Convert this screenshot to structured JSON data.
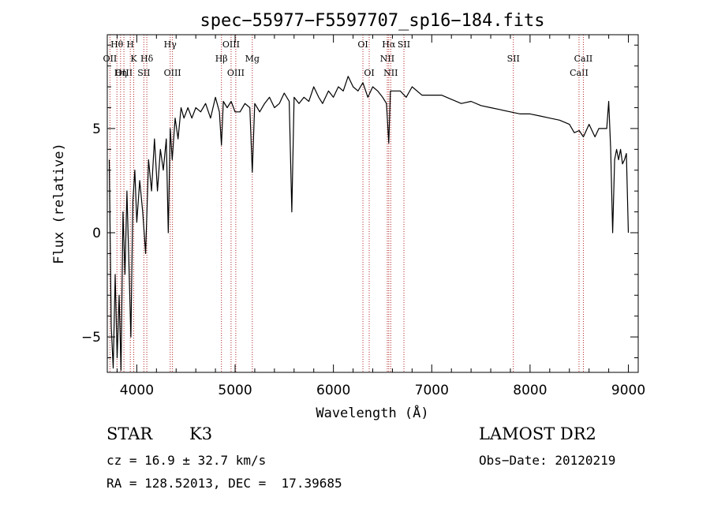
{
  "chart_data": {
    "type": "line",
    "title": "spec−55977−F5597707_sp16−184.fits",
    "xlabel": "Wavelength (Å)",
    "ylabel": "Flux (relative)",
    "xlim": [
      3700,
      9100
    ],
    "ylim": [
      -6.7,
      9.5
    ],
    "x_ticks": [
      4000,
      5000,
      6000,
      7000,
      8000,
      9000
    ],
    "y_ticks": [
      -5,
      0,
      5
    ],
    "y_tick_labels": [
      "−5",
      "0",
      "5"
    ],
    "grid": false,
    "series": [
      {
        "x": [
          3720,
          3740,
          3760,
          3780,
          3800,
          3820,
          3840,
          3860,
          3880,
          3900,
          3920,
          3940,
          3960,
          3980,
          4000,
          4030,
          4060,
          4090,
          4120,
          4150,
          4180,
          4210,
          4240,
          4270,
          4300,
          4320,
          4340,
          4360,
          4390,
          4420,
          4450,
          4480,
          4520,
          4560,
          4600,
          4650,
          4700,
          4750,
          4800,
          4840,
          4861,
          4880,
          4920,
          4960,
          5000,
          5050,
          5100,
          5150,
          5175,
          5200,
          5250,
          5300,
          5350,
          5400,
          5450,
          5500,
          5550,
          5577,
          5600,
          5650,
          5700,
          5750,
          5800,
          5850,
          5890,
          5950,
          6000,
          6050,
          6100,
          6150,
          6200,
          6250,
          6300,
          6350,
          6400,
          6450,
          6500,
          6540,
          6563,
          6580,
          6620,
          6680,
          6740,
          6800,
          6900,
          7000,
          7100,
          7200,
          7300,
          7400,
          7500,
          7600,
          7700,
          7800,
          7900,
          8000,
          8100,
          8200,
          8300,
          8400,
          8450,
          8500,
          8542,
          8600,
          8660,
          8700,
          8750,
          8780,
          8800,
          8820,
          8840,
          8860,
          8880,
          8900,
          8920,
          8940,
          8960,
          8980,
          9000
        ],
        "y": [
          3.5,
          -4.5,
          -6.5,
          -2.0,
          -6.0,
          -3.0,
          -6.6,
          1.0,
          -2.0,
          2.0,
          -1.5,
          -5.0,
          1.5,
          3.0,
          0.5,
          2.5,
          1.0,
          -1.0,
          3.5,
          2.0,
          4.5,
          2.0,
          4.0,
          3.0,
          4.5,
          0.0,
          5.0,
          3.5,
          5.5,
          4.5,
          6.0,
          5.5,
          6.0,
          5.5,
          6.0,
          5.8,
          6.2,
          5.5,
          6.5,
          5.8,
          4.2,
          6.3,
          6.0,
          6.3,
          5.8,
          5.8,
          6.2,
          6.0,
          2.9,
          6.2,
          5.8,
          6.2,
          6.5,
          6.0,
          6.2,
          6.7,
          6.3,
          1.0,
          6.5,
          6.2,
          6.5,
          6.3,
          7.0,
          6.5,
          6.2,
          6.8,
          6.5,
          7.0,
          6.8,
          7.5,
          7.0,
          6.8,
          7.2,
          6.5,
          7.0,
          6.8,
          6.5,
          6.2,
          4.3,
          6.8,
          6.8,
          6.8,
          6.5,
          7.0,
          6.6,
          6.6,
          6.6,
          6.4,
          6.2,
          6.3,
          6.1,
          6.0,
          5.9,
          5.8,
          5.7,
          5.7,
          5.6,
          5.5,
          5.4,
          5.2,
          4.8,
          4.9,
          4.6,
          5.2,
          4.6,
          5.0,
          5.0,
          5.0,
          6.3,
          4.0,
          0.0,
          3.5,
          4.0,
          3.5,
          4.0,
          3.3,
          3.5,
          3.8,
          0.0
        ]
      }
    ],
    "spectral_lines": [
      {
        "label": "OII",
        "x": 3727,
        "row": 2
      },
      {
        "label": "Hθ",
        "x": 3798,
        "row": 1
      },
      {
        "label": "OIII",
        "x": 3869,
        "row": 3
      },
      {
        "label": "Hη",
        "x": 3835,
        "row": 3
      },
      {
        "label": "H",
        "x": 3934,
        "row": 1
      },
      {
        "label": "K",
        "x": 3969,
        "row": 2
      },
      {
        "label": "Hδ",
        "x": 4102,
        "row": 2
      },
      {
        "label": "SII",
        "x": 4072,
        "row": 3
      },
      {
        "label": "Hγ",
        "x": 4340,
        "row": 1
      },
      {
        "label": "OIII",
        "x": 4363,
        "row": 3
      },
      {
        "label": "Hβ",
        "x": 4861,
        "row": 2
      },
      {
        "label": "OIII",
        "x": 4959,
        "row": 1
      },
      {
        "label": "OIII",
        "x": 5007,
        "row": 3
      },
      {
        "label": "Mg",
        "x": 5175,
        "row": 2
      },
      {
        "label": "OI",
        "x": 6300,
        "row": 1
      },
      {
        "label": "OI",
        "x": 6364,
        "row": 3
      },
      {
        "label": "Hα",
        "x": 6563,
        "row": 1
      },
      {
        "label": "NII",
        "x": 6548,
        "row": 2
      },
      {
        "label": "NII",
        "x": 6583,
        "row": 3
      },
      {
        "label": "SII",
        "x": 6717,
        "row": 1
      },
      {
        "label": "SII",
        "x": 7830,
        "row": 2
      },
      {
        "label": "CaII",
        "x": 8498,
        "row": 3
      },
      {
        "label": "CaII",
        "x": 8542,
        "row": 2
      }
    ]
  },
  "info": {
    "object_class": "STAR",
    "subclass": "K3",
    "survey": "LAMOST DR2",
    "redshift": "cz = 16.9 ± 32.7 km/s",
    "obs_date": "Obs−Date: 20120219",
    "coords": "RA = 128.52013, DEC =  17.39685"
  }
}
